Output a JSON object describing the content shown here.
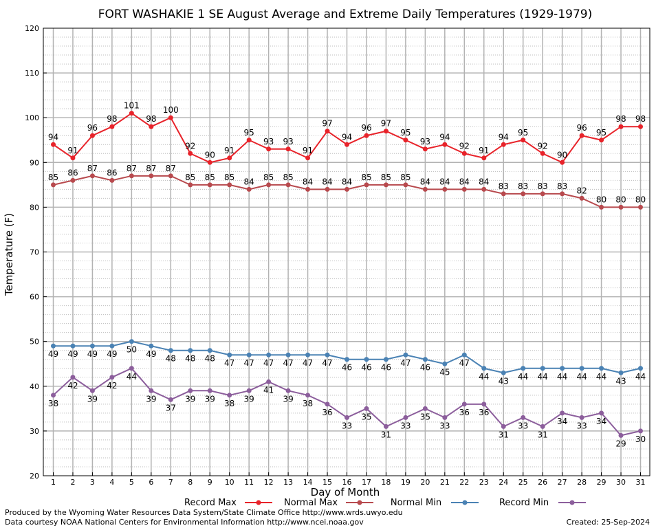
{
  "chart_data": {
    "type": "line",
    "title": "FORT WASHAKIE 1 SE August Average and Extreme Daily Temperatures (1929-1979)",
    "xlabel": "Day of Month",
    "ylabel": "Temperature (F)",
    "ylim": [
      20,
      120
    ],
    "yticks": [
      20,
      30,
      40,
      50,
      60,
      70,
      80,
      90,
      100,
      110,
      120
    ],
    "xlim": [
      1,
      31
    ],
    "categories": [
      1,
      2,
      3,
      4,
      5,
      6,
      7,
      8,
      9,
      10,
      11,
      12,
      13,
      14,
      15,
      16,
      17,
      18,
      19,
      20,
      21,
      22,
      23,
      24,
      25,
      26,
      27,
      28,
      29,
      30,
      31
    ],
    "grid": true,
    "legend": "bottom",
    "series": [
      {
        "name": "Record Max",
        "color": "#e8232a",
        "label_pos": "above",
        "values": [
          94,
          91,
          96,
          98,
          101,
          98,
          100,
          92,
          90,
          91,
          95,
          93,
          93,
          91,
          97,
          94,
          96,
          97,
          95,
          93,
          94,
          92,
          91,
          94,
          95,
          92,
          90,
          96,
          95,
          98,
          98
        ]
      },
      {
        "name": "Normal Max",
        "color": "#b84a4e",
        "label_pos": "above",
        "values": [
          85,
          86,
          87,
          86,
          87,
          87,
          87,
          85,
          85,
          85,
          84,
          85,
          85,
          84,
          84,
          84,
          85,
          85,
          85,
          84,
          84,
          84,
          84,
          83,
          83,
          83,
          83,
          82,
          80,
          80,
          80
        ]
      },
      {
        "name": "Normal Min",
        "color": "#4a82b4",
        "label_pos": "below",
        "values": [
          49,
          49,
          49,
          49,
          50,
          49,
          48,
          48,
          48,
          47,
          47,
          47,
          47,
          47,
          47,
          46,
          46,
          46,
          47,
          46,
          45,
          47,
          44,
          43,
          44,
          44,
          44,
          44,
          44,
          43,
          44
        ]
      },
      {
        "name": "Record Min",
        "color": "#8c5e9c",
        "label_pos": "below",
        "values": [
          38,
          42,
          39,
          42,
          44,
          39,
          37,
          39,
          39,
          38,
          39,
          41,
          39,
          38,
          36,
          33,
          35,
          31,
          33,
          35,
          33,
          36,
          36,
          31,
          33,
          31,
          34,
          33,
          34,
          29,
          30
        ]
      }
    ]
  },
  "footer": {
    "left_line1": "Produced by the Wyoming Water Resources Data System/State Climate Office http://www.wrds.uwyo.edu",
    "left_line2": "Data courtesy NOAA National Centers for Environmental Information http://www.ncei.noaa.gov",
    "created": "Created: 25-Sep-2024"
  }
}
